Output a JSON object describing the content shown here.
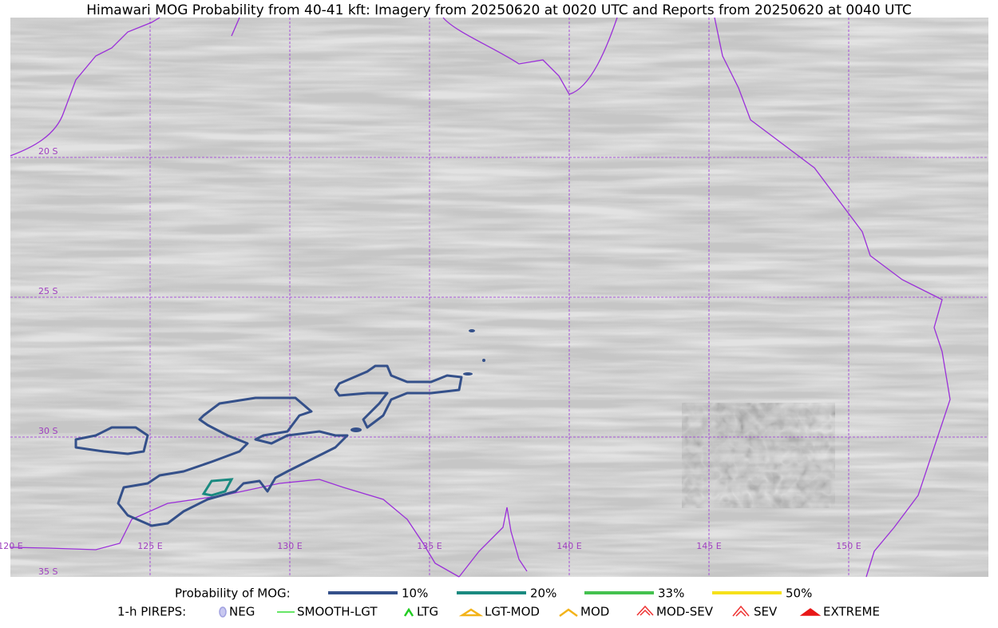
{
  "header": {
    "title": "Himawari MOG Probability from 40-41 kft: Imagery from 20250620 at 0020 UTC and Reports from 20250620 at 0040 UTC"
  },
  "map": {
    "lat_labels": [
      "20 S",
      "25 S",
      "30 S",
      "35 S"
    ],
    "lon_labels": [
      "120 E",
      "125 E",
      "130 E",
      "135 E",
      "140 E",
      "145 E",
      "150 E"
    ]
  },
  "legend": {
    "title": "Probability of MOG:",
    "items": [
      {
        "label": "10%",
        "color": "#34508a"
      },
      {
        "label": "20%",
        "color": "#1a8a80"
      },
      {
        "label": "33%",
        "color": "#44c14f"
      },
      {
        "label": "50%",
        "color": "#f6e11a"
      }
    ]
  },
  "pireps": {
    "title": "1-h PIREPS:",
    "items": [
      "NEG",
      "SMOOTH-LGT",
      "LTG",
      "LGT-MOD",
      "MOD",
      "MOD-SEV",
      "SEV",
      "EXTREME"
    ]
  }
}
